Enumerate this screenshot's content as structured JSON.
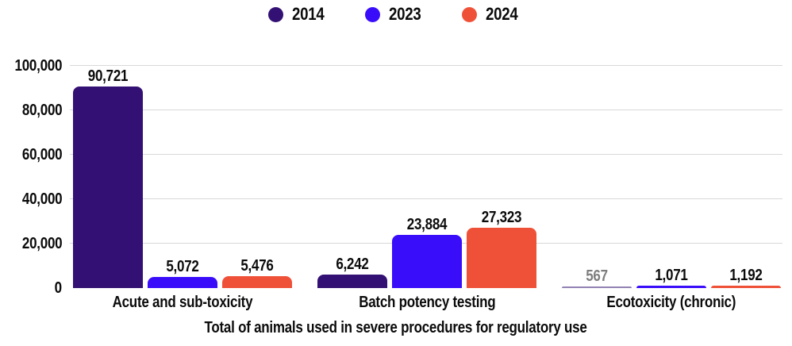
{
  "colors": {
    "series_2014": "#331073",
    "series_2023": "#3a0dfa",
    "series_2024": "#ef5138",
    "grid": "#d8d8d8",
    "text": "#0b0b0b",
    "background": "#ffffff"
  },
  "chart_data": {
    "type": "bar",
    "title": "",
    "xlabel": "Total of animals used in severe procedures for regulatory use",
    "ylabel": "",
    "legend_position": "top-center",
    "grid": true,
    "categories": [
      "Acute and sub-toxicity",
      "Batch potency testing",
      "Ecotoxicity (chronic)"
    ],
    "series": [
      {
        "name": "2014",
        "color": "#331073",
        "values": [
          90721,
          6242,
          567
        ],
        "labels": [
          "90,721",
          "6,242",
          "567"
        ]
      },
      {
        "name": "2023",
        "color": "#3a0dfa",
        "values": [
          5072,
          23884,
          1071
        ],
        "labels": [
          "5,072",
          "23,884",
          "1,071"
        ]
      },
      {
        "name": "2024",
        "color": "#ef5138",
        "values": [
          5476,
          27323,
          1192
        ],
        "labels": [
          "5,476",
          "27,323",
          "1,192"
        ]
      }
    ],
    "y_axis": {
      "ylim": [
        0,
        100000
      ],
      "ticks": [
        0,
        20000,
        40000,
        60000,
        80000,
        100000
      ],
      "tick_labels": [
        "0",
        "20,000",
        "40,000",
        "60,000",
        "80,000",
        "100,000"
      ]
    }
  }
}
